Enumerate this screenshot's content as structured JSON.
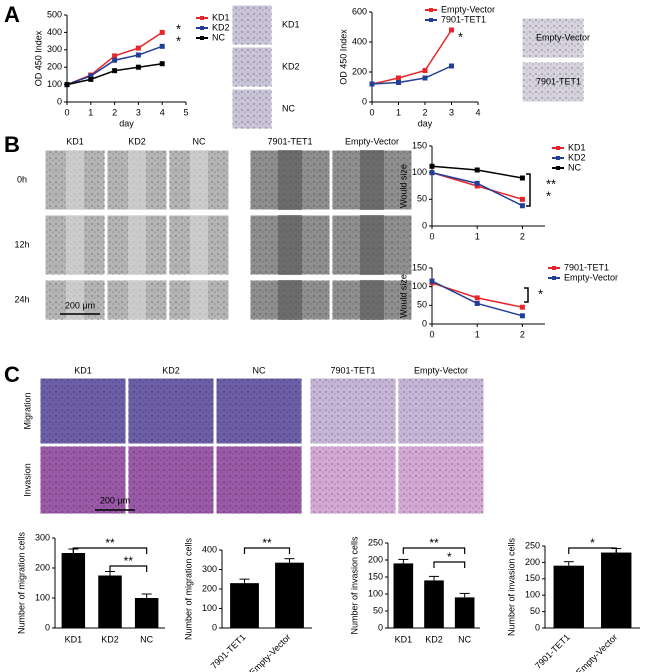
{
  "labels": {
    "panels": [
      "A",
      "B",
      "C"
    ],
    "a_left_photos": [
      "KD1",
      "KD2",
      "NC"
    ],
    "a_right_photos": [
      "Empty-Vector",
      "7901-TET1"
    ],
    "columns": [
      "KD1",
      "KD2",
      "NC",
      "7901-TET1",
      "Empty-Vector"
    ],
    "b_rows": [
      "0h",
      "12h",
      "24h"
    ],
    "c_rows": [
      "Migration",
      "Invasion"
    ],
    "scale_bar": "200 μm"
  },
  "chart_data": [
    {
      "type": "line",
      "ylabel": "OD 450 Index",
      "xlabel": "day",
      "x": [
        0,
        1,
        2,
        3,
        4
      ],
      "series": [
        {
          "name": "KD1",
          "color": "#e8262a",
          "values": [
            100,
            155,
            265,
            310,
            400
          ]
        },
        {
          "name": "KD2",
          "color": "#213f99",
          "values": [
            100,
            150,
            240,
            270,
            320
          ]
        },
        {
          "name": "NC",
          "color": "#000000",
          "values": [
            100,
            130,
            180,
            200,
            220
          ]
        }
      ],
      "xlim": [
        0,
        5
      ],
      "xticks": [
        0,
        1,
        2,
        3,
        4,
        5
      ],
      "ylim": [
        0,
        500
      ],
      "yticks": [
        0,
        100,
        200,
        300,
        400,
        500
      ],
      "annotations": [
        "*",
        "*"
      ]
    },
    {
      "type": "line",
      "ylabel": "OD 450 Index",
      "xlabel": "day",
      "x": [
        0,
        1,
        2,
        3
      ],
      "series": [
        {
          "name": "Empty-Vector",
          "color": "#e8262a",
          "values": [
            120,
            160,
            210,
            480
          ]
        },
        {
          "name": "7901-TET1",
          "color": "#213f99",
          "values": [
            120,
            130,
            160,
            240
          ]
        }
      ],
      "xlim": [
        0,
        4
      ],
      "xticks": [
        0,
        1,
        2,
        3,
        4
      ],
      "ylim": [
        0,
        600
      ],
      "yticks": [
        0,
        200,
        400,
        600
      ],
      "annotations": [
        "*"
      ]
    },
    {
      "type": "line",
      "ylabel": "Would size",
      "x": [
        0,
        1,
        2
      ],
      "series": [
        {
          "name": "KD1",
          "color": "#e8262a",
          "values": [
            100,
            75,
            50
          ]
        },
        {
          "name": "KD2",
          "color": "#213f99",
          "values": [
            100,
            80,
            38
          ]
        },
        {
          "name": "NC",
          "color": "#000000",
          "values": [
            112,
            105,
            90
          ]
        }
      ],
      "xlim": [
        0,
        2.5
      ],
      "xticks": [
        0,
        1,
        2
      ],
      "ylim": [
        0,
        150
      ],
      "yticks": [
        0,
        50,
        100,
        150
      ],
      "annotations": [
        "**",
        "*"
      ]
    },
    {
      "type": "line",
      "ylabel": "Would size",
      "x": [
        0,
        1,
        2
      ],
      "series": [
        {
          "name": "7901-TET1",
          "color": "#e8262a",
          "values": [
            110,
            70,
            45
          ]
        },
        {
          "name": "Empty-Vector",
          "color": "#213f99",
          "values": [
            115,
            55,
            22
          ]
        }
      ],
      "xlim": [
        0,
        2.5
      ],
      "xticks": [
        0,
        1,
        2
      ],
      "ylim": [
        0,
        150
      ],
      "yticks": [
        0,
        50,
        100,
        150
      ],
      "annotations": [
        "*"
      ]
    },
    {
      "type": "bar",
      "ylabel": "Number of migration cells",
      "categories": [
        "KD1",
        "KD2",
        "NC"
      ],
      "values": [
        250,
        175,
        100
      ],
      "color": "#000000",
      "ylim": [
        0,
        300
      ],
      "yticks": [
        0,
        100,
        200,
        300
      ],
      "annotations": [
        "**",
        "**"
      ]
    },
    {
      "type": "bar",
      "ylabel": "Number of migration cells",
      "categories": [
        "7901-TET1",
        "Empty-Vector"
      ],
      "values": [
        230,
        335
      ],
      "color": "#000000",
      "ylim": [
        0,
        400
      ],
      "yticks": [
        0,
        100,
        200,
        300,
        400
      ],
      "annotations": [
        "**"
      ]
    },
    {
      "type": "bar",
      "ylabel": "Number of invasion cells",
      "categories": [
        "KD1",
        "KD2",
        "NC"
      ],
      "values": [
        190,
        140,
        90
      ],
      "color": "#000000",
      "ylim": [
        0,
        250
      ],
      "yticks": [
        0,
        50,
        100,
        150,
        200,
        250
      ],
      "annotations": [
        "**",
        "*"
      ]
    },
    {
      "type": "bar",
      "ylabel": "Number of invasion cells",
      "categories": [
        "7901-TET1",
        "Empty-Vector"
      ],
      "values": [
        190,
        230
      ],
      "color": "#000000",
      "ylim": [
        0,
        250
      ],
      "yticks": [
        0,
        50,
        100,
        150,
        200,
        250
      ],
      "annotations": [
        "*"
      ]
    }
  ]
}
